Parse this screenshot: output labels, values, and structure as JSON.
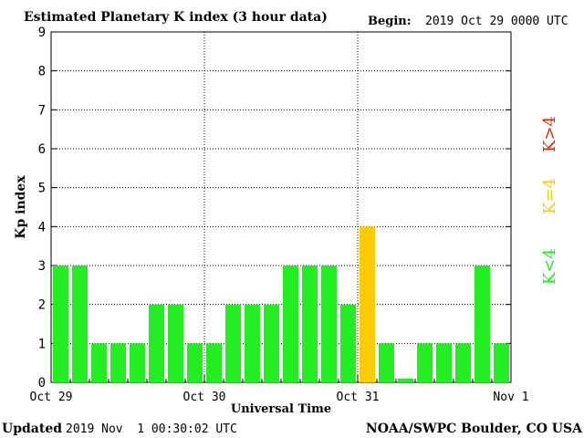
{
  "header": {
    "title": "Estimated Planetary K index (3 hour data)",
    "begin_label": "Begin:",
    "begin_value": "2019 Oct 29 0000 UTC"
  },
  "footer": {
    "updated_label": "Updated",
    "updated_value": "2019 Nov  1 00:30:02 UTC",
    "credit": "NOAA/SWPC Boulder, CO USA"
  },
  "legend": {
    "items": [
      {
        "label": "K<4",
        "color": "#22ee22"
      },
      {
        "label": "K=4",
        "color": "#ffcc00"
      },
      {
        "label": "K>4",
        "color": "#ee2200"
      }
    ]
  },
  "chart_data": {
    "type": "bar",
    "xlabel": "Universal Time",
    "ylabel": "Kp index",
    "ylim": [
      0,
      9
    ],
    "yticks": [
      0,
      1,
      2,
      3,
      4,
      5,
      6,
      7,
      8,
      9
    ],
    "xtick_labels": [
      "Oct 29",
      "Oct 30",
      "Oct 31",
      "Nov 1"
    ],
    "grid": true,
    "values": [
      3,
      3,
      1,
      1,
      1,
      2,
      2,
      1,
      1,
      2,
      2,
      2,
      3,
      3,
      3,
      2,
      4,
      1,
      0.1,
      1,
      1,
      1,
      3,
      1
    ],
    "colors": {
      "below_4": "#22ee22",
      "equal_4": "#ffcc00",
      "above_4": "#ee2200"
    }
  }
}
